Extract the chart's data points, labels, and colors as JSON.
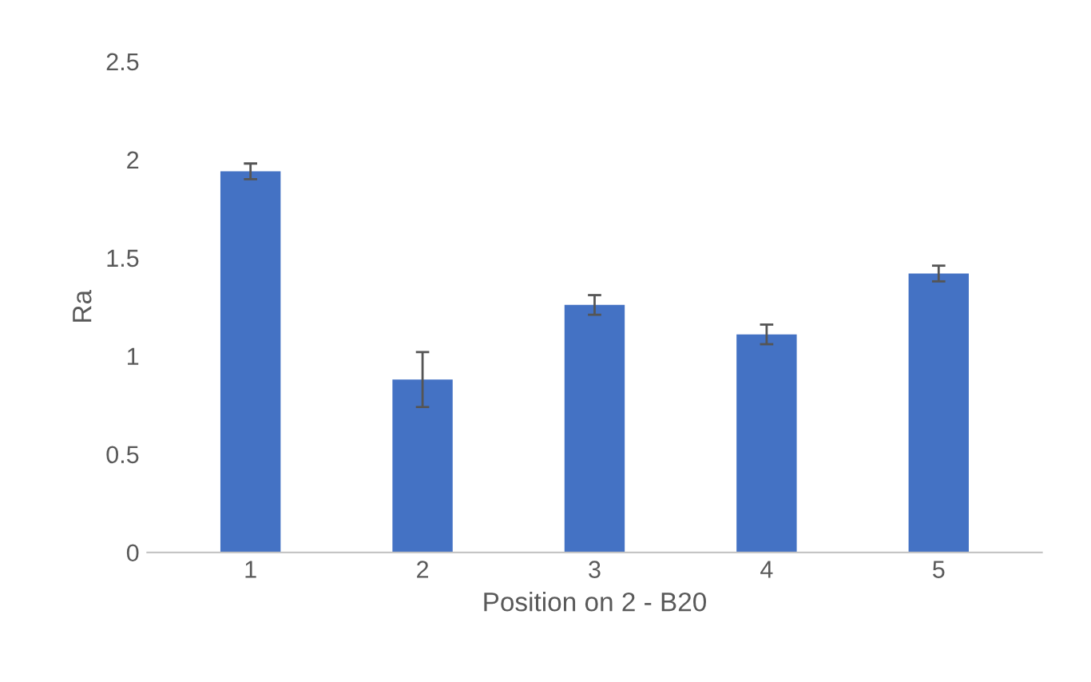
{
  "chart_data": {
    "type": "bar",
    "xlabel": "Position on 2 - B20",
    "ylabel": "Ra",
    "categories": [
      "1",
      "2",
      "3",
      "4",
      "5"
    ],
    "values": [
      1.94,
      0.88,
      1.26,
      1.11,
      1.42
    ],
    "errors": [
      0.04,
      0.14,
      0.05,
      0.05,
      0.04
    ],
    "color": "#4472c4",
    "ylim": [
      0,
      2.5
    ],
    "yticks": [
      0,
      0.5,
      1,
      1.5,
      2,
      2.5
    ],
    "grid": false
  }
}
